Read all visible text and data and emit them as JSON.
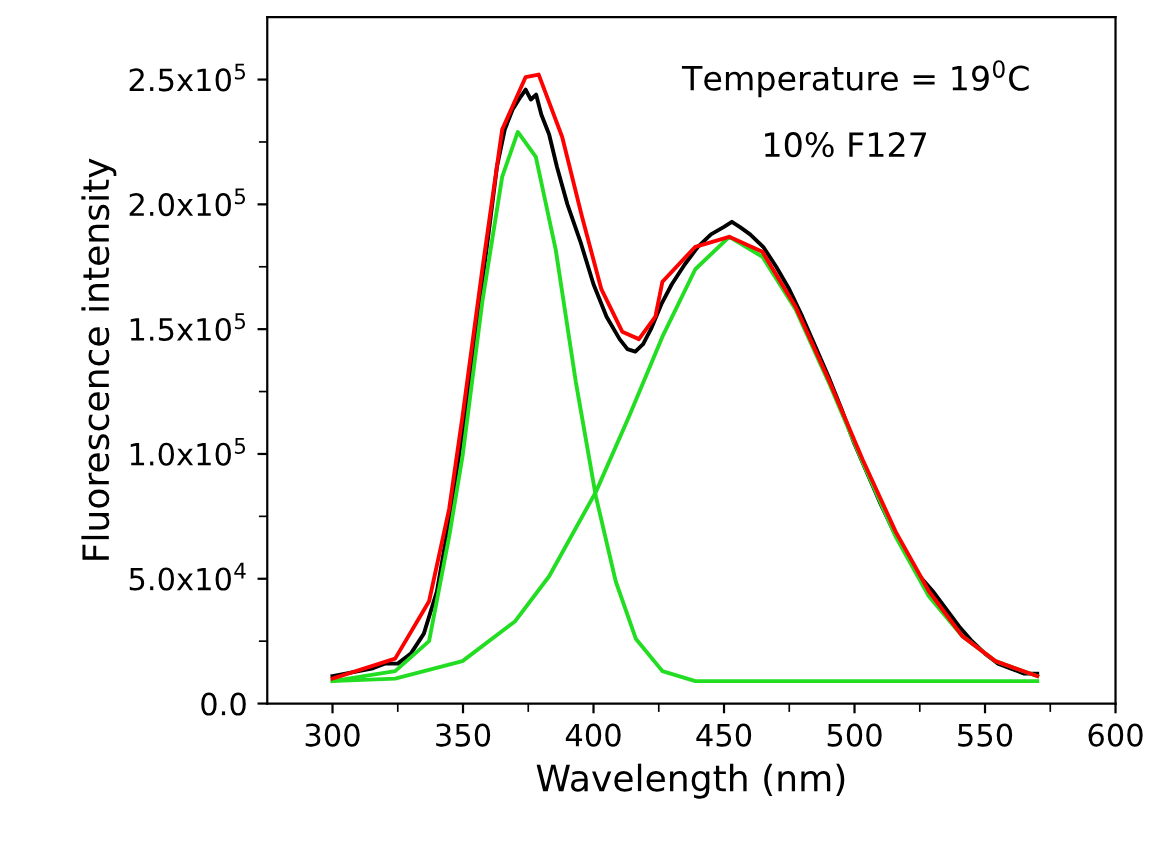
{
  "chart_data": {
    "type": "line",
    "xlabel": "Wavelength (nm)",
    "ylabel": "Fluorescence intensity",
    "annotations": [
      "Temperature = 19$^{0}$C",
      "10% F127"
    ],
    "xlim": [
      275,
      600
    ],
    "xticks": [
      300,
      350,
      400,
      450,
      500,
      550,
      600
    ],
    "ylim": [
      0,
      275000
    ],
    "yticks": [
      {
        "value": 0,
        "label": "0.0"
      },
      {
        "value": 50000,
        "label": "5.0x10$^{4}$"
      },
      {
        "value": 100000,
        "label": "1.0x10$^{5}$"
      },
      {
        "value": 150000,
        "label": "1.5x10$^{5}$"
      },
      {
        "value": 200000,
        "label": "2.0x10$^{5}$"
      },
      {
        "value": 250000,
        "label": "2.5x10$^{5}$"
      }
    ],
    "grid": false,
    "marker": "none",
    "line_style": "solid",
    "series": [
      {
        "color": "#000000",
        "x": [
          300,
          305,
          310,
          315,
          320,
          325,
          330,
          335,
          340,
          345,
          350,
          355,
          360,
          363,
          366,
          369,
          372,
          374,
          376,
          378,
          380,
          383,
          386,
          390,
          395,
          400,
          405,
          410,
          413,
          416,
          419,
          422,
          426,
          430,
          435,
          440,
          445,
          450,
          453,
          456,
          460,
          465,
          470,
          475,
          480,
          485,
          490,
          495,
          500,
          505,
          510,
          515,
          520,
          525,
          530,
          535,
          540,
          545,
          550,
          555,
          560,
          565,
          570
        ],
        "values": [
          11000,
          12000,
          13000,
          14000,
          16000,
          16000,
          20000,
          28000,
          45000,
          75000,
          110000,
          150000,
          190000,
          215000,
          230000,
          238000,
          243000,
          246000,
          242000,
          244000,
          236000,
          228000,
          215000,
          200000,
          185000,
          168000,
          155000,
          146000,
          142000,
          141000,
          144000,
          150000,
          160000,
          168000,
          176000,
          183000,
          188000,
          191000,
          193000,
          191000,
          188000,
          183000,
          175000,
          166000,
          155000,
          143000,
          131000,
          118000,
          104000,
          92000,
          80000,
          69000,
          60000,
          51000,
          45000,
          38000,
          31000,
          25000,
          20000,
          16000,
          14000,
          12000,
          12000
        ]
      },
      {
        "color": "#22dd22",
        "x": [
          300,
          324,
          337,
          344.7,
          349.8,
          357.4,
          365,
          371,
          377.9,
          385.5,
          393.2,
          400.9,
          408.5,
          416.2,
          426.4,
          439,
          570
        ],
        "values": [
          9000,
          13000,
          25000,
          67000,
          99000,
          161000,
          211000,
          229000,
          219000,
          182000,
          129000,
          83000,
          49000,
          26000,
          13000,
          9000,
          9000
        ]
      },
      {
        "color": "#22dd22",
        "x": [
          300,
          324,
          349.8,
          370,
          383,
          401,
          413.6,
          426.4,
          439,
          452,
          464.7,
          477.4,
          490,
          503,
          515.7,
          528.5,
          541.3,
          554,
          570
        ],
        "values": [
          9000,
          10000,
          17000,
          33000,
          51000,
          85000,
          115000,
          147000,
          174000,
          187000,
          179000,
          158000,
          129000,
          97000,
          67000,
          43000,
          27000,
          17000,
          11000
        ]
      },
      {
        "color": "#ff0000",
        "x": [
          300,
          324,
          337,
          344.7,
          349.8,
          357.4,
          365,
          374,
          379,
          388,
          395.6,
          403,
          411,
          417.4,
          423.7,
          426.4,
          439,
          452,
          464.7,
          477.4,
          490,
          503,
          515.7,
          528.5,
          541.3,
          554,
          570
        ],
        "values": [
          10000,
          18000,
          41000,
          78000,
          115000,
          174000,
          230000,
          251000,
          252000,
          227000,
          195000,
          166000,
          149000,
          146000,
          155000,
          169000,
          183000,
          187000,
          181000,
          159000,
          130000,
          98000,
          69000,
          45000,
          27000,
          17000,
          11000
        ]
      }
    ]
  }
}
